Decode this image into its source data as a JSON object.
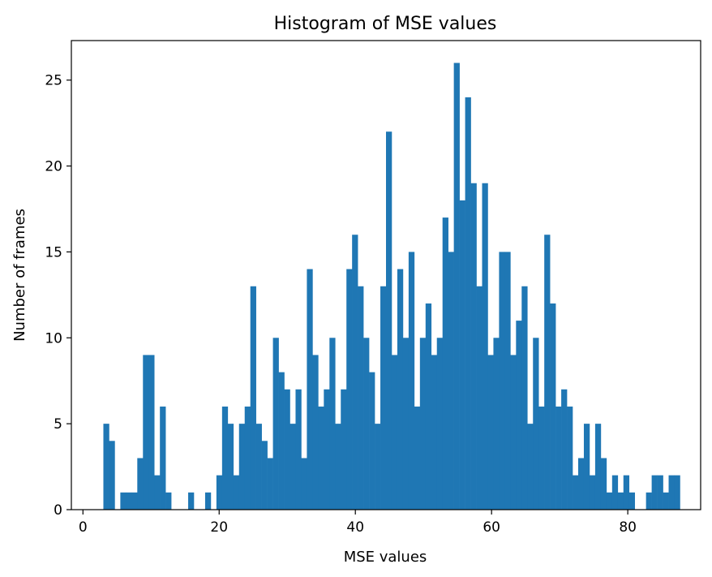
{
  "chart_data": {
    "type": "bar",
    "title": "Histogram of MSE values",
    "xlabel": "MSE values",
    "ylabel": "Number of frames",
    "xlim": [
      -1.7,
      90.7
    ],
    "ylim": [
      0,
      27.3
    ],
    "xticks": [
      0,
      20,
      40,
      60,
      80
    ],
    "yticks": [
      0,
      5,
      10,
      15,
      20,
      25
    ],
    "bin_start": 3.0,
    "bin_width": 0.83,
    "counts": [
      5,
      4,
      0,
      1,
      1,
      1,
      3,
      9,
      9,
      2,
      6,
      1,
      0,
      0,
      0,
      1,
      0,
      0,
      1,
      0,
      2,
      6,
      5,
      2,
      5,
      6,
      13,
      5,
      4,
      3,
      10,
      8,
      7,
      5,
      7,
      3,
      14,
      9,
      6,
      7,
      10,
      5,
      7,
      14,
      16,
      13,
      10,
      8,
      5,
      13,
      22,
      9,
      14,
      10,
      15,
      6,
      10,
      12,
      9,
      10,
      17,
      15,
      26,
      18,
      24,
      19,
      13,
      19,
      9,
      10,
      15,
      15,
      9,
      11,
      13,
      5,
      10,
      6,
      16,
      12,
      6,
      7,
      6,
      2,
      3,
      5,
      2,
      5,
      3,
      1,
      2,
      1,
      2,
      1,
      0,
      0,
      1,
      2,
      2,
      1,
      2,
      2
    ],
    "colors": {
      "bar": "#1f77b4",
      "axis": "#000000",
      "background": "#ffffff"
    },
    "grid": false,
    "legend": "none"
  }
}
